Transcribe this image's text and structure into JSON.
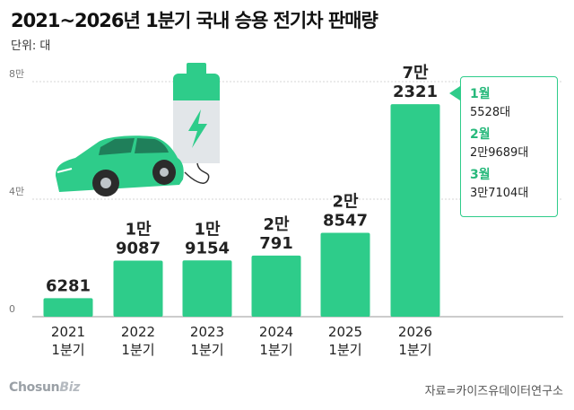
{
  "title": "2021~2026년 1분기 국내 승용 전기차 판매량",
  "unit": "단위: 대",
  "chart_data": {
    "type": "bar",
    "title": "2021~2026년 1분기 국내 승용 전기차 판매량",
    "unit": "단위: 대",
    "categories": [
      [
        "2021",
        "1분기"
      ],
      [
        "2022",
        "1분기"
      ],
      [
        "2023",
        "1분기"
      ],
      [
        "2024",
        "1분기"
      ],
      [
        "2025",
        "1분기"
      ],
      [
        "2026",
        "1분기"
      ]
    ],
    "values": [
      6281,
      19087,
      19154,
      20791,
      28547,
      72321
    ],
    "data_labels": [
      [
        "6281"
      ],
      [
        "1만",
        "9087"
      ],
      [
        "1만",
        "9154"
      ],
      [
        "2만",
        "791"
      ],
      [
        "2만",
        "8547"
      ],
      [
        "7만",
        "2321"
      ]
    ],
    "yticks": [
      {
        "value": 0,
        "label": "0"
      },
      {
        "value": 40000,
        "label": "4만"
      },
      {
        "value": 80000,
        "label": "8만"
      }
    ],
    "ylim": [
      0,
      80000
    ],
    "grid": true,
    "bar_color": "#2ecc8a"
  },
  "callout": {
    "months": [
      {
        "label": "1월",
        "value": "5528대"
      },
      {
        "label": "2월",
        "value": "2만9689대"
      },
      {
        "label": "3월",
        "value": "3만7104대"
      }
    ]
  },
  "brand": {
    "main": "Chosun",
    "suffix": "Biz"
  },
  "source": "자료=카이즈유데이터연구소",
  "icons": [
    "battery-icon",
    "lightning-icon",
    "electric-car-icon"
  ],
  "colors": {
    "accent": "#2ecc8a",
    "accent_dark": "#27b97b"
  }
}
